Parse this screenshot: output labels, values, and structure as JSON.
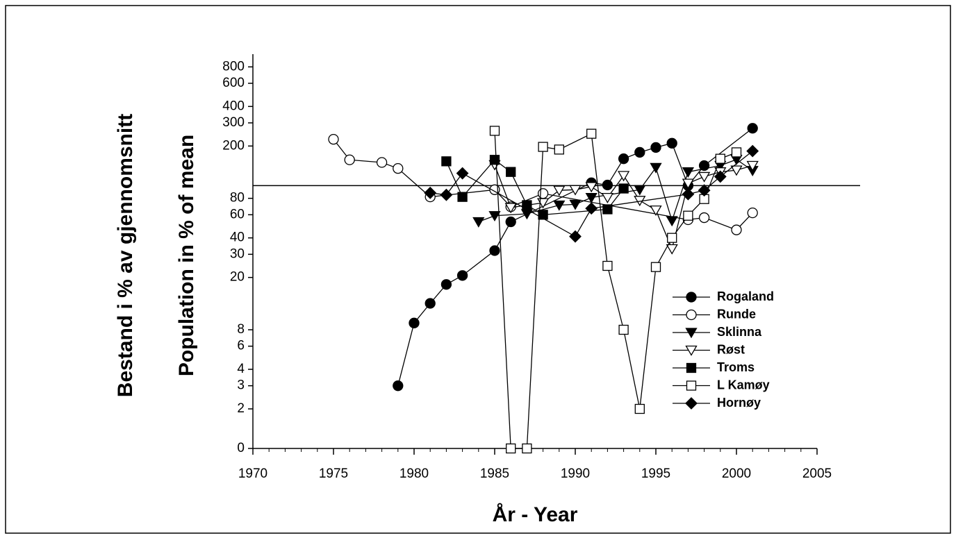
{
  "chart_data": {
    "type": "line",
    "title_y_1": "Bestand i % av gjennomsnitt",
    "title_y_2": "Population in % of mean",
    "x_label": "År  -  Year",
    "xlim": [
      1970,
      2005
    ],
    "xticks": [
      1970,
      1975,
      1980,
      1985,
      1990,
      1995,
      2000,
      2005
    ],
    "ylim": [
      0,
      1000
    ],
    "log_y": true,
    "yticks": [
      0,
      2,
      3,
      4,
      6,
      8,
      20,
      30,
      40,
      60,
      80,
      200,
      300,
      400,
      600,
      800
    ],
    "reference_line": 100,
    "series": [
      {
        "name": "Rogaland",
        "color": "#000000",
        "marker": "circle",
        "filled": true,
        "x": [
          1979,
          1980,
          1981,
          1982,
          1983,
          1985,
          1986,
          1991,
          1992,
          1993,
          1994,
          1995,
          1996,
          1997,
          1998,
          2001
        ],
        "values": [
          3,
          9,
          12.7,
          17.7,
          20.7,
          32,
          53,
          105,
          101,
          160,
          179,
          195,
          210,
          100,
          142,
          273
        ]
      },
      {
        "name": "Runde",
        "color": "#000000",
        "marker": "circle",
        "filled": false,
        "x": [
          1975,
          1976,
          1978,
          1979,
          1981,
          1985,
          1986,
          1988,
          1997,
          1998,
          2000,
          2001
        ],
        "values": [
          225,
          157,
          150,
          135,
          82,
          93,
          69,
          87,
          55,
          57,
          46,
          62
        ]
      },
      {
        "name": "Sklinna",
        "color": "#000000",
        "marker": "triangle-down",
        "filled": true,
        "x": [
          1984,
          1985,
          1987,
          1989,
          1990,
          1991,
          1994,
          1995,
          1996,
          1997,
          1999,
          2000,
          2001
        ],
        "values": [
          53,
          59,
          61,
          71,
          72,
          81,
          93,
          137,
          54,
          127,
          142,
          158,
          130
        ]
      },
      {
        "name": "Røst",
        "color": "#000000",
        "marker": "triangle-down",
        "filled": false,
        "x": [
          1985,
          1986,
          1988,
          1989,
          1990,
          1991,
          1992,
          1993,
          1994,
          1995,
          1996,
          1997,
          1998,
          1999,
          2000,
          2001
        ],
        "values": [
          144,
          68,
          74,
          92,
          93,
          98,
          81,
          119,
          77,
          65,
          33,
          104,
          117,
          127,
          131,
          142
        ]
      },
      {
        "name": "Troms",
        "color": "#000000",
        "marker": "square",
        "filled": true,
        "x": [
          1982,
          1983,
          1985,
          1986,
          1987,
          1988,
          1992,
          1993
        ],
        "values": [
          153,
          82,
          157,
          127,
          71,
          60,
          66,
          95
        ]
      },
      {
        "name": "L Kamøy",
        "color": "#000000",
        "marker": "square",
        "filled": false,
        "x": [
          1985,
          1986,
          1987,
          1988,
          1989,
          1991,
          1992,
          1993,
          1994,
          1995,
          1996,
          1997,
          1998,
          1999,
          2000
        ],
        "values": [
          261,
          0,
          0,
          197,
          188,
          248,
          24.5,
          8,
          2,
          24,
          40,
          59,
          79,
          160,
          179
        ]
      },
      {
        "name": "Hornøy",
        "color": "#000000",
        "marker": "diamond",
        "filled": true,
        "x": [
          1981,
          1982,
          1983,
          1990,
          1991,
          1997,
          1998,
          1999,
          2001
        ],
        "values": [
          88,
          85,
          124,
          41,
          67,
          86,
          92,
          117,
          183
        ]
      }
    ]
  }
}
